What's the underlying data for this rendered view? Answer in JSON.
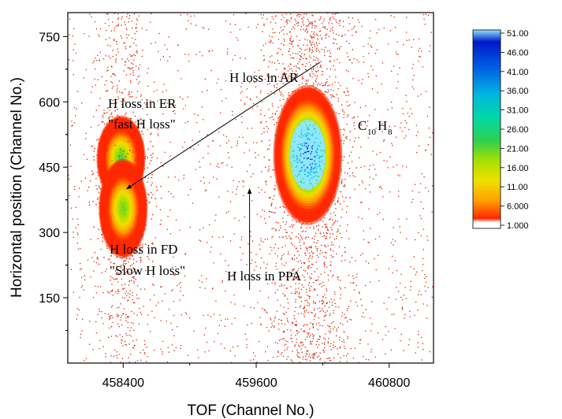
{
  "chart_data": {
    "type": "heatmap",
    "xlabel": "TOF (Channel No.)",
    "ylabel": "Horizontal position (Channel No.)",
    "xlim": [
      457900,
      461200
    ],
    "ylim": [
      0,
      805
    ],
    "x_ticks": [
      458400,
      459600,
      460800
    ],
    "y_ticks": [
      150,
      300,
      450,
      600,
      750
    ],
    "grid": false,
    "colorbar": {
      "labels": [
        "51.00",
        "46.00",
        "41.00",
        "36.00",
        "31.00",
        "26.00",
        "21.00",
        "16.00",
        "11.00",
        "6.000",
        "1.000"
      ],
      "values": [
        51,
        46,
        41,
        36,
        31,
        26,
        21,
        16,
        11,
        6,
        1
      ],
      "colors": [
        "#8fe6ff",
        "#0018c8",
        "#0064e6",
        "#00b4e0",
        "#00d8a8",
        "#30d050",
        "#a8e000",
        "#f0e000",
        "#ffa000",
        "#ff2800",
        "#ffffff"
      ]
    },
    "clusters": [
      {
        "id": "er",
        "x": 458380,
        "y": 470,
        "sx": 85,
        "sy": 38,
        "peak": 26
      },
      {
        "id": "fd",
        "x": 458400,
        "y": 355,
        "sx": 85,
        "sy": 44,
        "peak": 24
      },
      {
        "id": "c10h8",
        "x": 460065,
        "y": 478,
        "sx": 120,
        "sy": 62,
        "peak": 51
      }
    ],
    "annotations": {
      "er_line1": "H loss in ER",
      "er_line2": "\"fast H loss\"",
      "ar": "H loss in AR",
      "fd_line1": "H loss in FD",
      "fd_line2": "\"Slow H loss\"",
      "ppa": "H loss in PPA",
      "mol_c": "C",
      "mol_c_sub": "10",
      "mol_h": "H",
      "mol_h_sub": "8"
    },
    "arrows": [
      {
        "id": "ar-arrow",
        "from": [
          460170,
          690
        ],
        "to": [
          458430,
          400
        ]
      },
      {
        "id": "ppa-arrow",
        "from": [
          459540,
          168
        ],
        "to": [
          459540,
          400
        ]
      }
    ]
  }
}
